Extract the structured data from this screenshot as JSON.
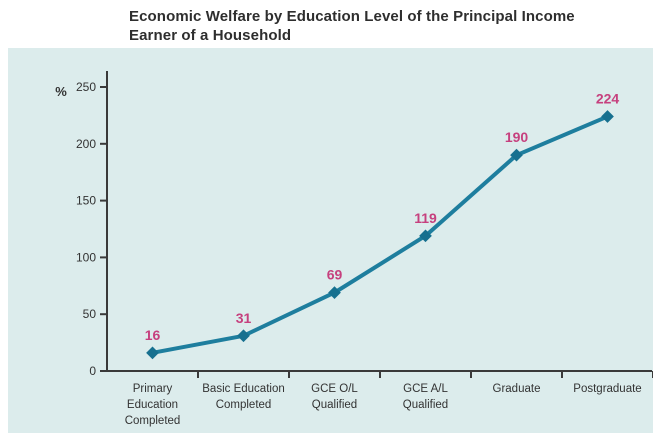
{
  "heading": {
    "lines": [
      "Economic Welfare by Education Level of the Principal Income",
      "Earner of a Household"
    ]
  },
  "chart_data": {
    "type": "line",
    "title": "Economic Welfare by Education Level of the Principal Income Earner of a Household",
    "unit_label": "%",
    "categories": [
      "Primary Education Completed",
      "Basic Education Completed",
      "GCE O/L Qualified",
      "GCE A/L Qualified",
      "Graduate",
      "Postgraduate"
    ],
    "category_tick_lines": [
      [
        "Primary",
        "Education",
        "Completed"
      ],
      [
        "Basic Education",
        "Completed"
      ],
      [
        "GCE O/L",
        "Qualified"
      ],
      [
        "GCE A/L",
        "Qualified"
      ],
      [
        "Graduate"
      ],
      [
        "Postgraduate"
      ]
    ],
    "values": [
      16,
      31,
      69,
      119,
      190,
      224
    ],
    "data_labels": [
      "16",
      "31",
      "69",
      "119",
      "190",
      "224"
    ],
    "ylim": [
      0,
      250
    ],
    "yticks": [
      0,
      50,
      100,
      150,
      200,
      250
    ],
    "grid": false,
    "legend": "none",
    "marker_shape": "diamond",
    "colors": {
      "line": "#1e7e9e",
      "marker": "#17708f",
      "data_label": "#c6407e",
      "axis": "#3a3a3a",
      "tick_text": "#333333",
      "plot_bg": "#dcecec",
      "page_bg": "#ffffff",
      "title_text": "#2e2e2e"
    }
  }
}
